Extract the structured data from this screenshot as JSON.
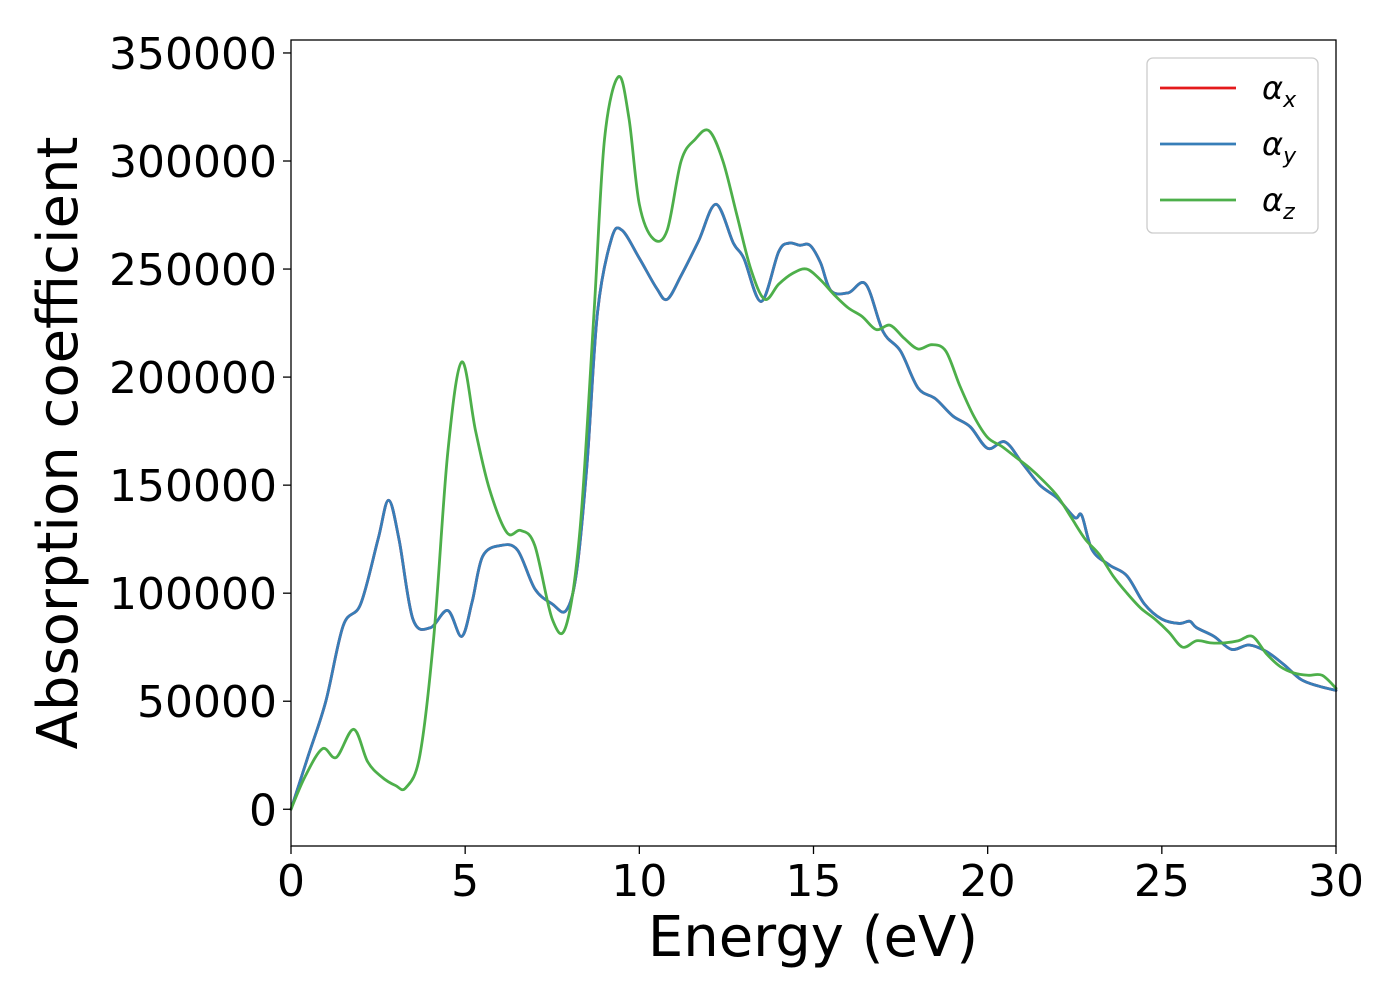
{
  "chart_data": {
    "type": "line",
    "title": "",
    "xlabel": "Energy (eV)",
    "ylabel": "Absorption coefficient",
    "xlim": [
      0,
      30
    ],
    "ylim": [
      -17000,
      356000
    ],
    "xticks": [
      0,
      5,
      10,
      15,
      20,
      25,
      30
    ],
    "yticks": [
      0,
      50000,
      100000,
      150000,
      200000,
      250000,
      300000,
      350000
    ],
    "xtick_labels": [
      "0",
      "5",
      "10",
      "15",
      "20",
      "25",
      "30"
    ],
    "ytick_labels": [
      "0",
      "50000",
      "100000",
      "150000",
      "200000",
      "250000",
      "300000",
      "350000"
    ],
    "grid": false,
    "legend_position": "top-right",
    "series": [
      {
        "name": "αx",
        "legend_base": "α",
        "legend_sub": "x",
        "color": "#e41a1c",
        "x": [
          0,
          0.5,
          1,
          1.5,
          2,
          2.5,
          2.8,
          3.1,
          3.5,
          4,
          4.5,
          4.9,
          5.2,
          5.5,
          6,
          6.5,
          7,
          7.5,
          7.9,
          8.2,
          8.5,
          8.8,
          9.2,
          9.5,
          10,
          10.5,
          10.8,
          11.2,
          11.7,
          12.2,
          12.7,
          13,
          13.5,
          14,
          14.3,
          14.6,
          14.9,
          15.2,
          15.5,
          16,
          16.5,
          17,
          17.5,
          18,
          18.5,
          19,
          19.5,
          20,
          20.5,
          21,
          21.5,
          22,
          22.5,
          22.7,
          23,
          23.5,
          24,
          24.5,
          25,
          25.5,
          25.8,
          26,
          26.5,
          27,
          27.5,
          28,
          28.5,
          29,
          29.5,
          30
        ],
        "y": [
          0,
          25000,
          50000,
          85000,
          95000,
          125000,
          143000,
          125000,
          88000,
          84000,
          92000,
          80000,
          96000,
          117000,
          122000,
          120000,
          102000,
          95000,
          92000,
          110000,
          160000,
          230000,
          264000,
          268000,
          255000,
          241000,
          236000,
          247000,
          263000,
          280000,
          262000,
          255000,
          235000,
          258000,
          262000,
          261000,
          261000,
          253000,
          240000,
          239000,
          243000,
          221000,
          212000,
          195000,
          190000,
          182000,
          177000,
          167000,
          170000,
          160000,
          150000,
          144000,
          135000,
          136000,
          120000,
          113000,
          108000,
          95000,
          88000,
          86000,
          87000,
          84000,
          80000,
          74000,
          76000,
          73000,
          67000,
          60000,
          57000,
          55000
        ]
      },
      {
        "name": "αy",
        "legend_base": "α",
        "legend_sub": "y",
        "color": "#377eb8",
        "x": [
          0,
          0.5,
          1,
          1.5,
          2,
          2.5,
          2.8,
          3.1,
          3.5,
          4,
          4.5,
          4.9,
          5.2,
          5.5,
          6,
          6.5,
          7,
          7.5,
          7.9,
          8.2,
          8.5,
          8.8,
          9.2,
          9.5,
          10,
          10.5,
          10.8,
          11.2,
          11.7,
          12.2,
          12.7,
          13,
          13.5,
          14,
          14.3,
          14.6,
          14.9,
          15.2,
          15.5,
          16,
          16.5,
          17,
          17.5,
          18,
          18.5,
          19,
          19.5,
          20,
          20.5,
          21,
          21.5,
          22,
          22.5,
          22.7,
          23,
          23.5,
          24,
          24.5,
          25,
          25.5,
          25.8,
          26,
          26.5,
          27,
          27.5,
          28,
          28.5,
          29,
          29.5,
          30
        ],
        "y": [
          0,
          25000,
          50000,
          85000,
          95000,
          125000,
          143000,
          125000,
          88000,
          84000,
          92000,
          80000,
          96000,
          117000,
          122000,
          120000,
          102000,
          95000,
          92000,
          110000,
          160000,
          230000,
          264000,
          268000,
          255000,
          241000,
          236000,
          247000,
          263000,
          280000,
          262000,
          255000,
          235000,
          258000,
          262000,
          261000,
          261000,
          253000,
          240000,
          239000,
          243000,
          221000,
          212000,
          195000,
          190000,
          182000,
          177000,
          167000,
          170000,
          160000,
          150000,
          144000,
          135000,
          136000,
          120000,
          113000,
          108000,
          95000,
          88000,
          86000,
          87000,
          84000,
          80000,
          74000,
          76000,
          73000,
          67000,
          60000,
          57000,
          55000
        ]
      },
      {
        "name": "αz",
        "legend_base": "α",
        "legend_sub": "z",
        "color": "#4daf4a",
        "x": [
          0,
          0.4,
          0.9,
          1.3,
          1.8,
          2.2,
          2.6,
          3.0,
          3.3,
          3.7,
          4.1,
          4.5,
          4.9,
          5.3,
          5.7,
          6.2,
          6.6,
          7.0,
          7.5,
          7.9,
          8.3,
          8.7,
          9.0,
          9.4,
          9.7,
          10.0,
          10.4,
          10.8,
          11.2,
          11.6,
          12.0,
          12.4,
          12.8,
          13.2,
          13.6,
          14.0,
          14.4,
          14.8,
          15.2,
          15.6,
          16.0,
          16.4,
          16.8,
          17.2,
          17.6,
          18.0,
          18.4,
          18.8,
          19.2,
          19.6,
          20.0,
          20.4,
          20.8,
          21.2,
          21.6,
          22.0,
          22.4,
          22.8,
          23.2,
          23.6,
          24.0,
          24.4,
          24.8,
          25.2,
          25.6,
          26.0,
          26.4,
          26.8,
          27.2,
          27.6,
          28.0,
          28.4,
          28.8,
          29.2,
          29.6,
          30
        ],
        "y": [
          0,
          15000,
          28000,
          24000,
          37000,
          22000,
          15000,
          11000,
          10000,
          25000,
          80000,
          165000,
          207000,
          175000,
          148000,
          128000,
          129000,
          122000,
          88000,
          85000,
          130000,
          230000,
          310000,
          339000,
          320000,
          280000,
          264000,
          268000,
          300000,
          310000,
          314000,
          300000,
          275000,
          250000,
          236000,
          243000,
          248000,
          250000,
          245000,
          238000,
          232000,
          228000,
          222000,
          224000,
          218000,
          213000,
          215000,
          212000,
          196000,
          182000,
          172000,
          168000,
          163000,
          158000,
          152000,
          145000,
          135000,
          125000,
          118000,
          108000,
          100000,
          93000,
          88000,
          82000,
          75000,
          78000,
          77000,
          77000,
          78000,
          80000,
          72000,
          66000,
          63000,
          62000,
          62000,
          56000
        ]
      }
    ]
  }
}
